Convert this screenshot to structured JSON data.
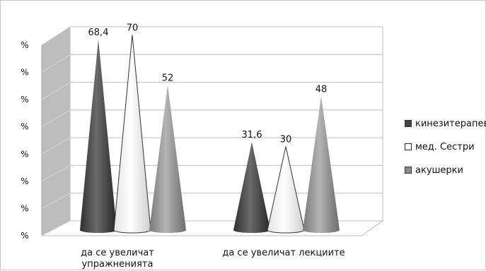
{
  "chart_data": {
    "type": "bar",
    "style": "3d-cone",
    "categories": [
      "да се увеличат упражненията",
      "да се увеличат лекциите"
    ],
    "series": [
      {
        "name": "кинезитерапевти",
        "values": [
          68.4,
          31.6
        ],
        "color": "#454545"
      },
      {
        "name": "мед. Сестри",
        "values": [
          70,
          30
        ],
        "color": "#ffffff"
      },
      {
        "name": "акушерки",
        "values": [
          52,
          48
        ],
        "color": "#8c8c8c"
      }
    ],
    "data_labels": [
      [
        "68,4",
        "31,6"
      ],
      [
        "70",
        "30"
      ],
      [
        "52",
        "48"
      ]
    ],
    "y_tick_labels": [
      "%",
      "%",
      "%",
      "%",
      "%",
      "%",
      "%",
      "%"
    ],
    "ylim": [
      0,
      70
    ],
    "grid": true,
    "legend_position": "right"
  }
}
